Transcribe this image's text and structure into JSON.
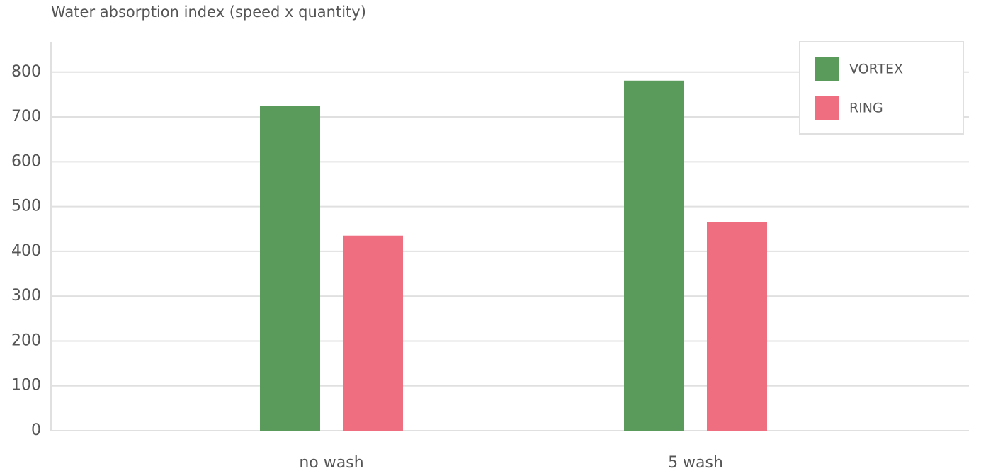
{
  "chart_data": {
    "type": "bar",
    "title": "Water absorption index (speed x quantity)",
    "categories": [
      "no wash",
      "5 wash"
    ],
    "series": [
      {
        "name": "VORTEX",
        "color": "#5a9a5a",
        "values": [
          724,
          781
        ]
      },
      {
        "name": "RING",
        "color": "#ef6e80",
        "values": [
          435,
          466
        ]
      }
    ],
    "ylim": [
      0,
      866
    ],
    "yticks": [
      0,
      100,
      200,
      300,
      400,
      500,
      600,
      700,
      800
    ],
    "grid": true,
    "legend": "top-right"
  }
}
